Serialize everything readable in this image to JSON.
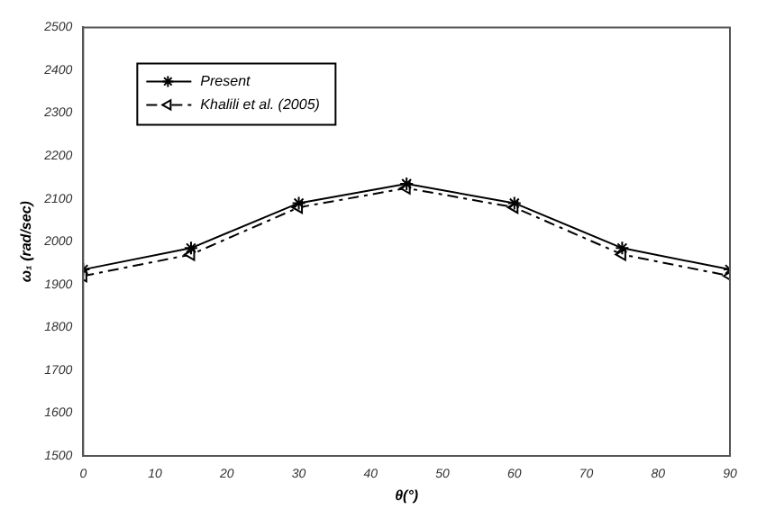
{
  "chart_data": {
    "type": "line",
    "xlabel": "θ(°)",
    "ylabel": "ω₁ (rad/sec)",
    "x": [
      0,
      15,
      30,
      45,
      60,
      75,
      90
    ],
    "series": [
      {
        "name": "Present",
        "color": "#000000",
        "values": [
          1935,
          1985,
          2090,
          2135,
          2090,
          1985,
          1935
        ],
        "marker": "cross",
        "line_style": "solid"
      },
      {
        "name": "Khalili et al. (2005)",
        "color": "#000000",
        "values": [
          1920,
          1970,
          2080,
          2125,
          2080,
          1970,
          1920
        ],
        "marker": "triangle",
        "line_style": "dashed"
      }
    ],
    "xlim": [
      0,
      90
    ],
    "xticks": [
      0,
      10,
      20,
      30,
      40,
      50,
      60,
      70,
      80,
      90
    ],
    "ylim": [
      1500,
      2500
    ],
    "yticks": [
      1500,
      1600,
      1700,
      1800,
      1900,
      2000,
      2100,
      2200,
      2300,
      2400,
      2500
    ],
    "grid": false,
    "legend": "top left"
  }
}
